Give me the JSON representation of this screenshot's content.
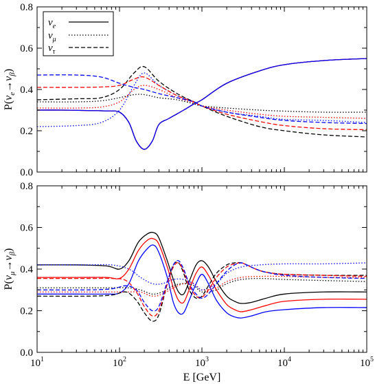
{
  "chart_data": [
    {
      "type": "line",
      "xscale": "log",
      "xlim": [
        10,
        100000
      ],
      "ylim": [
        0.0,
        0.8
      ],
      "yticks": [
        "0.0",
        "0.2",
        "0.4",
        "0.6",
        "0.8"
      ],
      "ylabel": {
        "prefix": "P(",
        "sub1": "e",
        "arrow": "→",
        "sub2": "β",
        "suffix": ")"
      },
      "legend": {
        "placement": "top-left",
        "entries": [
          {
            "sub": "e",
            "linestyle": "solid"
          },
          {
            "sub": "μ",
            "linestyle": "dotted"
          },
          {
            "sub": "τ",
            "linestyle": "dashed"
          }
        ]
      },
      "series": [
        {
          "color": "#000000",
          "linestyle": "solid",
          "x": [
            10,
            20,
            40,
            70,
            100,
            130,
            160,
            200,
            250,
            300,
            400,
            600,
            800,
            1000,
            2000,
            5000,
            10000,
            30000,
            100000
          ],
          "y": [
            0.3,
            0.3,
            0.298,
            0.296,
            0.29,
            0.24,
            0.15,
            0.11,
            0.15,
            0.23,
            0.26,
            0.3,
            0.33,
            0.35,
            0.43,
            0.49,
            0.52,
            0.54,
            0.55
          ]
        },
        {
          "color": "#ff0000",
          "linestyle": "solid",
          "x": [
            10,
            20,
            40,
            70,
            100,
            130,
            160,
            200,
            250,
            300,
            400,
            600,
            800,
            1000,
            2000,
            5000,
            10000,
            30000,
            100000
          ],
          "y": [
            0.3,
            0.3,
            0.298,
            0.296,
            0.29,
            0.24,
            0.15,
            0.11,
            0.15,
            0.23,
            0.26,
            0.3,
            0.33,
            0.35,
            0.43,
            0.49,
            0.52,
            0.54,
            0.55
          ]
        },
        {
          "color": "#0000ff",
          "linestyle": "solid",
          "x": [
            10,
            20,
            40,
            70,
            100,
            130,
            160,
            200,
            250,
            300,
            400,
            600,
            800,
            1000,
            2000,
            5000,
            10000,
            30000,
            100000
          ],
          "y": [
            0.3,
            0.3,
            0.298,
            0.296,
            0.29,
            0.24,
            0.15,
            0.11,
            0.15,
            0.23,
            0.26,
            0.3,
            0.33,
            0.35,
            0.43,
            0.49,
            0.52,
            0.54,
            0.55
          ]
        },
        {
          "color": "#000000",
          "linestyle": "dotted",
          "x": [
            10,
            30,
            60,
            100,
            150,
            200,
            300,
            500,
            800,
            1000,
            2000,
            5000,
            10000,
            30000,
            100000
          ],
          "y": [
            0.34,
            0.34,
            0.345,
            0.36,
            0.375,
            0.375,
            0.36,
            0.35,
            0.33,
            0.32,
            0.31,
            0.3,
            0.295,
            0.29,
            0.29
          ]
        },
        {
          "color": "#ff0000",
          "linestyle": "dotted",
          "x": [
            10,
            30,
            60,
            100,
            150,
            200,
            300,
            500,
            800,
            1000,
            2000,
            5000,
            10000,
            30000,
            100000
          ],
          "y": [
            0.31,
            0.31,
            0.315,
            0.34,
            0.4,
            0.42,
            0.4,
            0.36,
            0.335,
            0.32,
            0.3,
            0.28,
            0.27,
            0.265,
            0.26
          ]
        },
        {
          "color": "#0000ff",
          "linestyle": "dotted",
          "x": [
            10,
            30,
            60,
            100,
            150,
            200,
            300,
            500,
            800,
            1000,
            2000,
            5000,
            10000,
            30000,
            100000
          ],
          "y": [
            0.22,
            0.225,
            0.24,
            0.3,
            0.42,
            0.48,
            0.42,
            0.37,
            0.34,
            0.32,
            0.29,
            0.27,
            0.255,
            0.25,
            0.24
          ]
        },
        {
          "color": "#000000",
          "linestyle": "dashed",
          "x": [
            10,
            30,
            60,
            100,
            150,
            200,
            300,
            500,
            800,
            1000,
            2000,
            5000,
            10000,
            30000,
            100000
          ],
          "y": [
            0.35,
            0.355,
            0.36,
            0.4,
            0.48,
            0.51,
            0.44,
            0.38,
            0.34,
            0.32,
            0.27,
            0.22,
            0.2,
            0.18,
            0.17
          ]
        },
        {
          "color": "#ff0000",
          "linestyle": "dashed",
          "x": [
            10,
            30,
            60,
            100,
            150,
            200,
            300,
            500,
            800,
            1000,
            2000,
            5000,
            10000,
            30000,
            100000
          ],
          "y": [
            0.41,
            0.41,
            0.412,
            0.42,
            0.45,
            0.46,
            0.42,
            0.37,
            0.34,
            0.32,
            0.28,
            0.245,
            0.225,
            0.21,
            0.205
          ]
        },
        {
          "color": "#0000ff",
          "linestyle": "dashed",
          "x": [
            10,
            30,
            60,
            100,
            150,
            200,
            300,
            500,
            800,
            1000,
            2000,
            5000,
            10000,
            30000,
            100000
          ],
          "y": [
            0.47,
            0.47,
            0.46,
            0.43,
            0.41,
            0.4,
            0.38,
            0.36,
            0.34,
            0.32,
            0.29,
            0.265,
            0.25,
            0.24,
            0.235
          ]
        }
      ]
    },
    {
      "type": "line",
      "xscale": "log",
      "xlim": [
        10,
        100000
      ],
      "ylim": [
        0.0,
        0.8
      ],
      "yticks": [
        "0.0",
        "0.2",
        "0.4",
        "0.6",
        "0.8"
      ],
      "xticks": [
        {
          "value": 10,
          "base": "10",
          "exp": "1"
        },
        {
          "value": 100,
          "base": "10",
          "exp": "2"
        },
        {
          "value": 1000,
          "base": "10",
          "exp": "3"
        },
        {
          "value": 10000,
          "base": "10",
          "exp": "4"
        },
        {
          "value": 100000,
          "base": "10",
          "exp": "5"
        }
      ],
      "xlabel": "E [GeV]",
      "ylabel": {
        "prefix": "P(",
        "sub1": "μ",
        "arrow": "→",
        "sub2": "β",
        "suffix": ")"
      },
      "series": [
        {
          "color": "#000000",
          "linestyle": "solid",
          "x": [
            10,
            30,
            70,
            100,
            130,
            170,
            220,
            260,
            300,
            380,
            450,
            520,
            600,
            700,
            850,
            1000,
            1200,
            1500,
            2000,
            2500,
            3000,
            4000,
            6000,
            10000,
            30000,
            100000
          ],
          "y": [
            0.42,
            0.42,
            0.415,
            0.4,
            0.44,
            0.53,
            0.57,
            0.575,
            0.55,
            0.44,
            0.35,
            0.29,
            0.28,
            0.34,
            0.42,
            0.44,
            0.41,
            0.34,
            0.27,
            0.245,
            0.235,
            0.24,
            0.26,
            0.28,
            0.29,
            0.29
          ]
        },
        {
          "color": "#ff0000",
          "linestyle": "solid",
          "x": [
            10,
            30,
            70,
            100,
            130,
            170,
            220,
            260,
            300,
            380,
            450,
            520,
            600,
            700,
            850,
            1000,
            1200,
            1500,
            2000,
            2500,
            3000,
            4000,
            6000,
            10000,
            30000,
            100000
          ],
          "y": [
            0.36,
            0.36,
            0.36,
            0.355,
            0.4,
            0.49,
            0.54,
            0.545,
            0.52,
            0.41,
            0.31,
            0.25,
            0.24,
            0.3,
            0.38,
            0.41,
            0.37,
            0.3,
            0.23,
            0.205,
            0.195,
            0.205,
            0.225,
            0.245,
            0.255,
            0.255
          ]
        },
        {
          "color": "#0000ff",
          "linestyle": "solid",
          "x": [
            10,
            30,
            70,
            100,
            130,
            170,
            220,
            260,
            300,
            380,
            450,
            520,
            600,
            700,
            850,
            1000,
            1200,
            1500,
            2000,
            2500,
            3000,
            4000,
            6000,
            10000,
            30000,
            100000
          ],
          "y": [
            0.28,
            0.28,
            0.28,
            0.285,
            0.33,
            0.44,
            0.5,
            0.515,
            0.48,
            0.36,
            0.24,
            0.19,
            0.19,
            0.25,
            0.33,
            0.375,
            0.33,
            0.25,
            0.19,
            0.17,
            0.165,
            0.175,
            0.195,
            0.205,
            0.215,
            0.215
          ]
        },
        {
          "color": "#000000",
          "linestyle": "dotted",
          "x": [
            10,
            40,
            80,
            130,
            180,
            250,
            330,
            450,
            600,
            800,
            1000,
            1500,
            2000,
            3000,
            5000,
            10000,
            30000,
            100000
          ],
          "y": [
            0.31,
            0.31,
            0.31,
            0.31,
            0.3,
            0.28,
            0.29,
            0.32,
            0.33,
            0.32,
            0.29,
            0.3,
            0.33,
            0.35,
            0.355,
            0.35,
            0.345,
            0.34
          ]
        },
        {
          "color": "#ff0000",
          "linestyle": "dotted",
          "x": [
            10,
            40,
            80,
            130,
            180,
            250,
            330,
            450,
            600,
            800,
            1000,
            1500,
            2000,
            3000,
            5000,
            10000,
            30000,
            100000
          ],
          "y": [
            0.29,
            0.29,
            0.29,
            0.29,
            0.29,
            0.27,
            0.28,
            0.31,
            0.33,
            0.33,
            0.3,
            0.31,
            0.34,
            0.36,
            0.365,
            0.365,
            0.36,
            0.36
          ]
        },
        {
          "color": "#0000ff",
          "linestyle": "dotted",
          "x": [
            10,
            40,
            80,
            130,
            180,
            250,
            330,
            450,
            600,
            800,
            1000,
            1500,
            2000,
            3000,
            5000,
            10000,
            30000,
            100000
          ],
          "y": [
            0.42,
            0.42,
            0.42,
            0.4,
            0.36,
            0.33,
            0.33,
            0.35,
            0.35,
            0.33,
            0.3,
            0.33,
            0.38,
            0.41,
            0.42,
            0.425,
            0.425,
            0.43
          ]
        },
        {
          "color": "#000000",
          "linestyle": "dashed",
          "x": [
            10,
            40,
            80,
            120,
            160,
            200,
            250,
            300,
            380,
            450,
            520,
            600,
            700,
            850,
            1000,
            1200,
            1500,
            2000,
            2500,
            3000,
            3500,
            4500,
            6000,
            10000,
            30000,
            100000
          ],
          "y": [
            0.27,
            0.27,
            0.275,
            0.29,
            0.25,
            0.19,
            0.15,
            0.18,
            0.33,
            0.42,
            0.43,
            0.38,
            0.3,
            0.26,
            0.27,
            0.32,
            0.38,
            0.42,
            0.43,
            0.43,
            0.42,
            0.4,
            0.385,
            0.375,
            0.37,
            0.37
          ]
        },
        {
          "color": "#ff0000",
          "linestyle": "dashed",
          "x": [
            10,
            40,
            80,
            120,
            160,
            200,
            250,
            300,
            380,
            450,
            520,
            600,
            700,
            850,
            1000,
            1200,
            1500,
            2000,
            2500,
            3000,
            3500,
            4500,
            6000,
            10000,
            30000,
            100000
          ],
          "y": [
            0.355,
            0.355,
            0.355,
            0.345,
            0.29,
            0.22,
            0.175,
            0.2,
            0.33,
            0.41,
            0.43,
            0.39,
            0.32,
            0.27,
            0.265,
            0.3,
            0.36,
            0.41,
            0.425,
            0.43,
            0.42,
            0.4,
            0.385,
            0.375,
            0.37,
            0.365
          ]
        },
        {
          "color": "#0000ff",
          "linestyle": "dashed",
          "x": [
            10,
            40,
            80,
            120,
            160,
            200,
            250,
            300,
            380,
            450,
            520,
            600,
            700,
            850,
            1000,
            1200,
            1500,
            2000,
            2500,
            3000,
            3500,
            4500,
            6000,
            10000,
            30000,
            100000
          ],
          "y": [
            0.3,
            0.3,
            0.305,
            0.32,
            0.3,
            0.24,
            0.2,
            0.22,
            0.34,
            0.42,
            0.44,
            0.4,
            0.33,
            0.28,
            0.26,
            0.28,
            0.33,
            0.39,
            0.42,
            0.43,
            0.42,
            0.4,
            0.385,
            0.37,
            0.36,
            0.355
          ]
        }
      ]
    }
  ]
}
